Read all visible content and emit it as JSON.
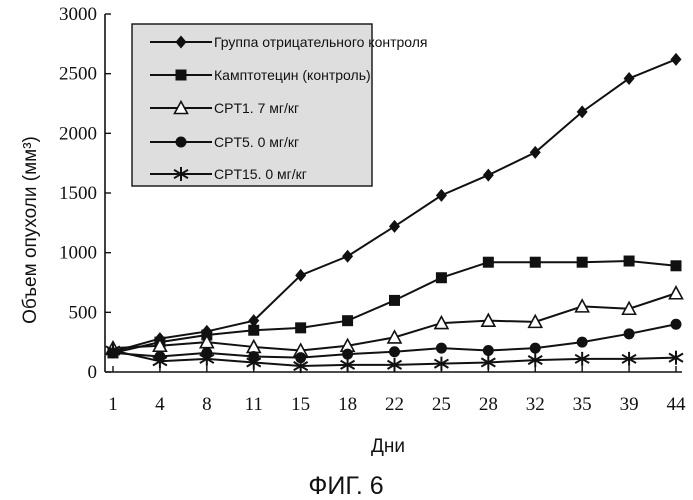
{
  "chart_data": {
    "type": "line",
    "caption": "ФИГ. 6",
    "xlabel": "Дни",
    "ylabel": "Объем опухоли (мм³)",
    "categories": [
      "1",
      "4",
      "8",
      "11",
      "15",
      "18",
      "22",
      "25",
      "28",
      "32",
      "35",
      "39",
      "44"
    ],
    "ylim": [
      0,
      3000
    ],
    "yticks": [
      0,
      500,
      1000,
      1500,
      2000,
      2500,
      3000
    ],
    "grid": false,
    "legend_position": "top-left",
    "series": [
      {
        "name": "Группа отрицательного контроля",
        "marker": "diamond",
        "values": [
          170,
          280,
          340,
          430,
          810,
          970,
          1220,
          1480,
          1650,
          1840,
          2180,
          2460,
          2620
        ]
      },
      {
        "name": "Камптотецин (контроль)",
        "marker": "square",
        "values": [
          160,
          250,
          310,
          350,
          370,
          430,
          600,
          790,
          920,
          920,
          920,
          930,
          890
        ]
      },
      {
        "name": "CPT1. 7 мг/кг",
        "marker": "triangle",
        "values": [
          200,
          220,
          250,
          210,
          180,
          220,
          290,
          410,
          430,
          420,
          550,
          530,
          660
        ]
      },
      {
        "name": "CPT5. 0 мг/кг",
        "marker": "circle",
        "values": [
          160,
          130,
          160,
          130,
          120,
          150,
          170,
          200,
          180,
          200,
          250,
          320,
          400
        ]
      },
      {
        "name": "CPT15. 0 мг/кг",
        "marker": "asterisk",
        "values": [
          180,
          90,
          110,
          80,
          50,
          60,
          60,
          70,
          80,
          100,
          110,
          110,
          120
        ]
      }
    ]
  }
}
